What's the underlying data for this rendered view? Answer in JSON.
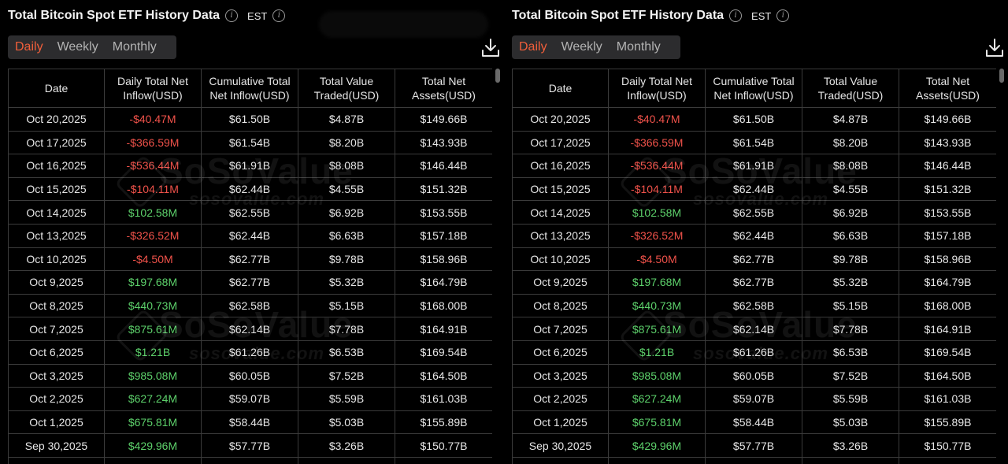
{
  "panels": [
    {
      "title": "Total Bitcoin Spot ETF History Data",
      "timezone": "EST",
      "tabs": [
        {
          "label": "Daily",
          "active": true
        },
        {
          "label": "Weekly",
          "active": false
        },
        {
          "label": "Monthly",
          "active": false
        }
      ],
      "watermark": {
        "brand": "SoSoValue",
        "site": "sosovalue.com"
      }
    },
    {
      "title": "Total Bitcoin Spot ETF History Data",
      "timezone": "EST",
      "tabs": [
        {
          "label": "Daily",
          "active": true
        },
        {
          "label": "Weekly",
          "active": false
        },
        {
          "label": "Monthly",
          "active": false
        }
      ],
      "watermark": {
        "brand": "SoSoValue",
        "site": "sosovalue.com"
      }
    }
  ],
  "icons": {
    "info": "info-circle-icon",
    "download": "download-icon"
  },
  "colors": {
    "accent": "#f15f3b",
    "negative": "#f0524a",
    "positive": "#5dd16b",
    "background": "#000000",
    "tab_bg": "#2c2c2e"
  },
  "table": {
    "columns": [
      {
        "line1": "Date",
        "line2": ""
      },
      {
        "line1": "Daily Total Net",
        "line2": "Inflow(USD)"
      },
      {
        "line1": "Cumulative Total",
        "line2": "Net Inflow(USD)"
      },
      {
        "line1": "Total Value",
        "line2": "Traded(USD)"
      },
      {
        "line1": "Total Net",
        "line2": "Assets(USD)"
      }
    ],
    "rows": [
      [
        "Oct 20,2025",
        "-$40.47M",
        "$61.50B",
        "$4.87B",
        "$149.66B"
      ],
      [
        "Oct 17,2025",
        "-$366.59M",
        "$61.54B",
        "$8.20B",
        "$143.93B"
      ],
      [
        "Oct 16,2025",
        "-$536.44M",
        "$61.91B",
        "$8.08B",
        "$146.44B"
      ],
      [
        "Oct 15,2025",
        "-$104.11M",
        "$62.44B",
        "$4.55B",
        "$151.32B"
      ],
      [
        "Oct 14,2025",
        "$102.58M",
        "$62.55B",
        "$6.92B",
        "$153.55B"
      ],
      [
        "Oct 13,2025",
        "-$326.52M",
        "$62.44B",
        "$6.63B",
        "$157.18B"
      ],
      [
        "Oct 10,2025",
        "-$4.50M",
        "$62.77B",
        "$9.78B",
        "$158.96B"
      ],
      [
        "Oct 9,2025",
        "$197.68M",
        "$62.77B",
        "$5.32B",
        "$164.79B"
      ],
      [
        "Oct 8,2025",
        "$440.73M",
        "$62.58B",
        "$5.15B",
        "$168.00B"
      ],
      [
        "Oct 7,2025",
        "$875.61M",
        "$62.14B",
        "$7.78B",
        "$164.91B"
      ],
      [
        "Oct 6,2025",
        "$1.21B",
        "$61.26B",
        "$6.53B",
        "$169.54B"
      ],
      [
        "Oct 3,2025",
        "$985.08M",
        "$60.05B",
        "$7.52B",
        "$164.50B"
      ],
      [
        "Oct 2,2025",
        "$627.24M",
        "$59.07B",
        "$5.59B",
        "$161.03B"
      ],
      [
        "Oct 1,2025",
        "$675.81M",
        "$58.44B",
        "$5.03B",
        "$155.89B"
      ],
      [
        "Sep 30,2025",
        "$429.96M",
        "$57.77B",
        "$3.26B",
        "$150.77B"
      ],
      [
        "",
        "",
        "",
        "",
        ""
      ]
    ]
  }
}
